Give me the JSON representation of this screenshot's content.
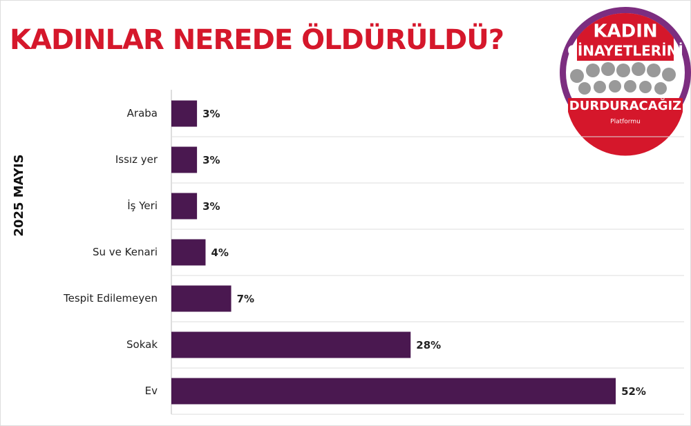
{
  "chart_data": {
    "type": "barh",
    "title": "KADINLAR NEREDE ÖLDÜRÜLDÜ?",
    "ylabel": "2025 MAYIS",
    "categories": [
      "Araba",
      "Issız yer",
      "İş Yeri",
      "Su ve Kenari",
      "Tespit Edilemeyen",
      "Sokak",
      "Ev"
    ],
    "values": [
      3,
      3,
      3,
      4,
      7,
      28,
      52
    ],
    "value_labels": [
      "3%",
      "3%",
      "3%",
      "4%",
      "7%",
      "28%",
      "52%"
    ],
    "color": "#4a1850",
    "xlim": [
      0,
      60
    ]
  },
  "logo": {
    "line1": "KADIN",
    "line2": "CİNAYETLERİNİ",
    "line3": "DURDURACAĞIZ",
    "line4": "Platformu"
  }
}
